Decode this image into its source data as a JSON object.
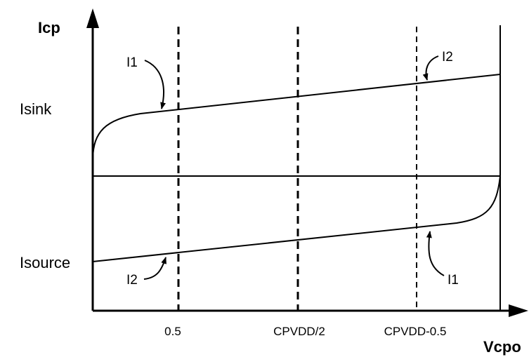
{
  "axes": {
    "y_label": "Icp",
    "x_label": "Vcpo"
  },
  "levels": {
    "sink": "Isink",
    "source": "Isource"
  },
  "x_ticks": [
    "0.5",
    "CPVDD/2",
    "CPVDD-0.5"
  ],
  "annotations": {
    "sink_left": "I1",
    "sink_right": "I2",
    "source_left": "I2",
    "source_right": "I1"
  },
  "colors": {
    "ink": "#000000",
    "background": "#ffffff"
  }
}
